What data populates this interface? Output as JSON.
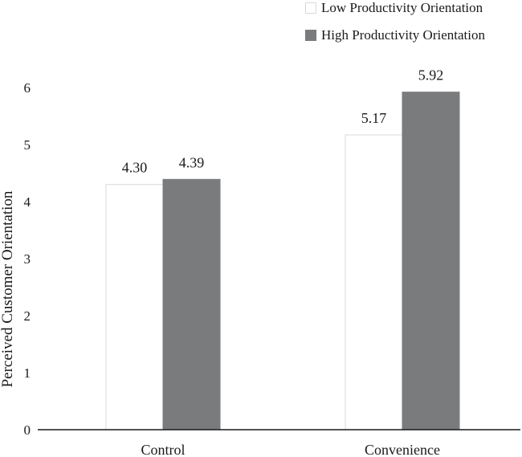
{
  "chart_data": {
    "type": "bar",
    "categories": [
      "Control",
      "Convenience"
    ],
    "series": [
      {
        "name": "Low Productivity Orientation",
        "values": [
          4.3,
          5.17
        ],
        "data_labels": [
          "4.30",
          "5.17"
        ],
        "fill": "#ffffff",
        "stroke": "#d9d9d9"
      },
      {
        "name": "High Productivity Orientation",
        "values": [
          4.39,
          5.92
        ],
        "data_labels": [
          "4.39",
          "5.92"
        ],
        "fill": "#7a7b7d",
        "stroke": "#7a7b7d"
      }
    ],
    "ylabel": "Perceived Customer Orientation",
    "xlabel": "",
    "ylim": [
      0,
      6
    ],
    "yticks": [
      "0",
      "1",
      "2",
      "3",
      "4",
      "5",
      "6"
    ],
    "grid": false,
    "legend_position": "top-right"
  }
}
